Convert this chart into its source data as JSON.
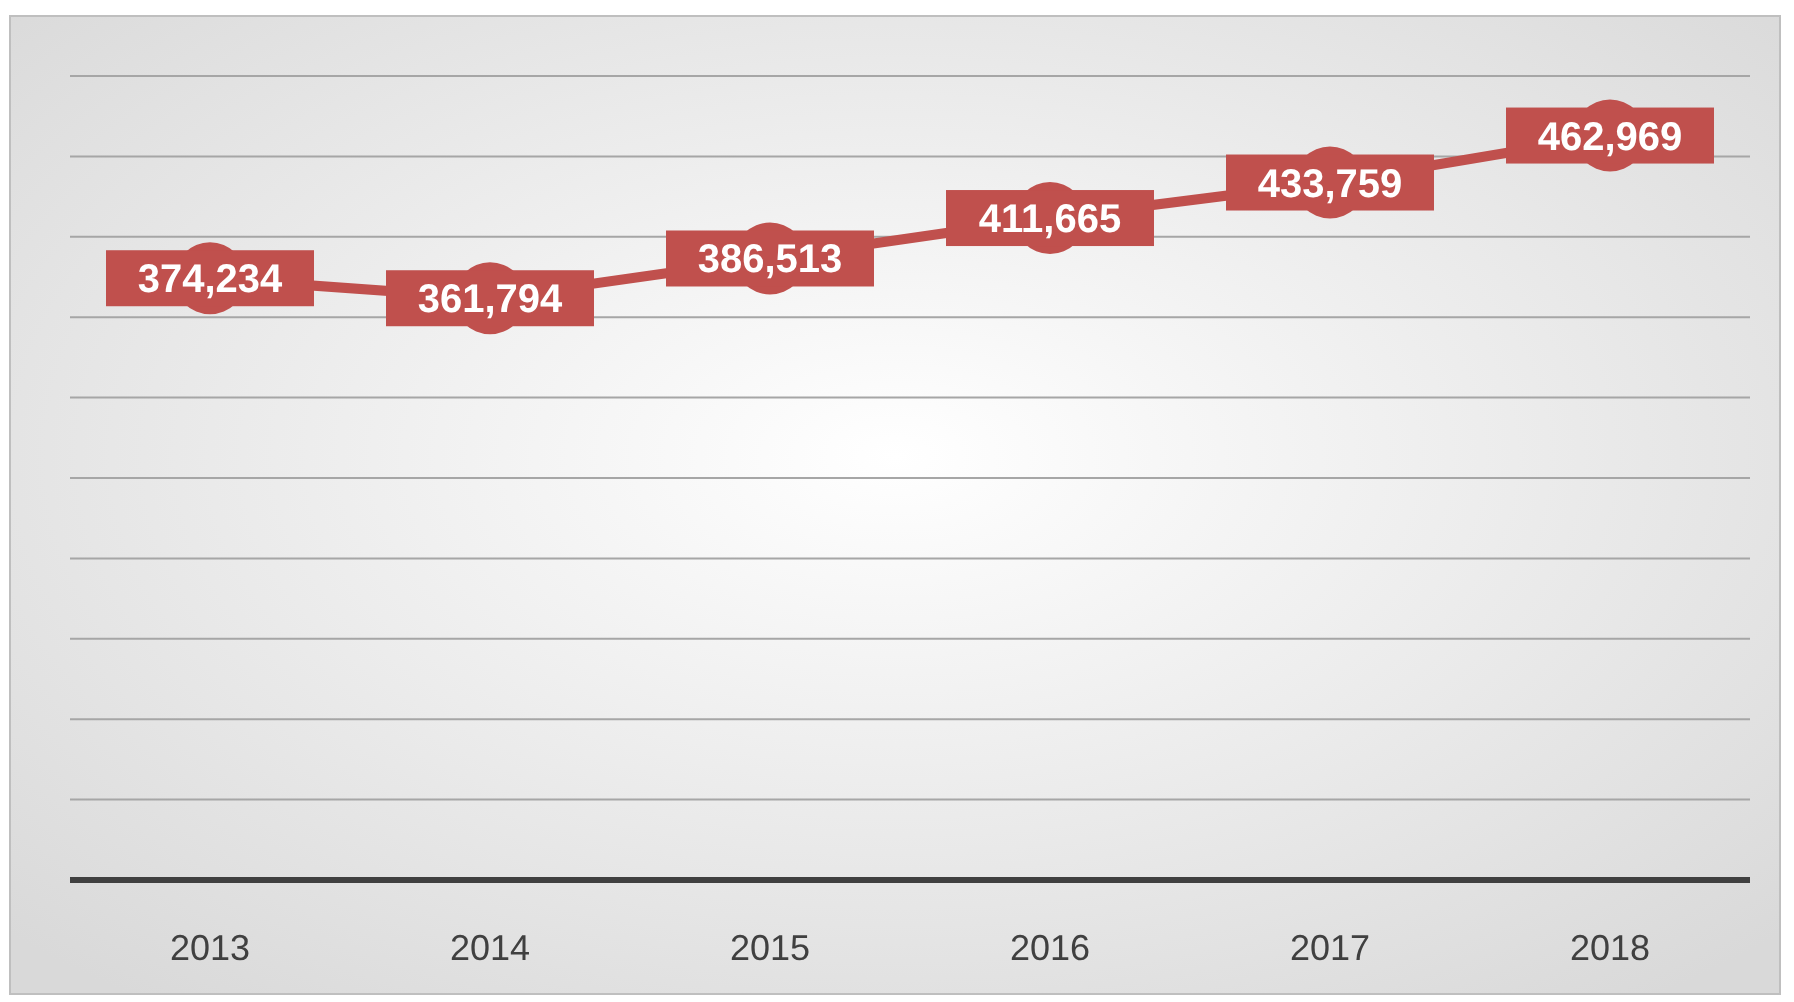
{
  "chart_data": {
    "type": "line",
    "categories": [
      "2013",
      "2014",
      "2015",
      "2016",
      "2017",
      "2018"
    ],
    "series": [
      {
        "color": "#c0504d",
        "values": [
          374234,
          361794,
          386513,
          411665,
          433759,
          462969
        ],
        "value_labels": [
          "374,234",
          "361,794",
          "386,513",
          "411,665",
          "433,759",
          "462,969"
        ]
      }
    ],
    "ylim": [
      0,
      500000
    ],
    "yticks": [
      {
        "value": 0,
        "label": null
      },
      {
        "value": 50000,
        "label": null
      },
      {
        "value": 100000,
        "label": null
      },
      {
        "value": 150000,
        "label": null
      },
      {
        "value": 200000,
        "label": null
      },
      {
        "value": 250000,
        "label": null
      },
      {
        "value": 300000,
        "label": null
      },
      {
        "value": 350000,
        "label": null
      },
      {
        "value": 400000,
        "label": null
      },
      {
        "value": 450000,
        "label": null
      },
      {
        "value": 500000,
        "label": null
      }
    ],
    "tick_labels": "x",
    "grid": "y",
    "marker": "circle",
    "line_style": "solid"
  }
}
